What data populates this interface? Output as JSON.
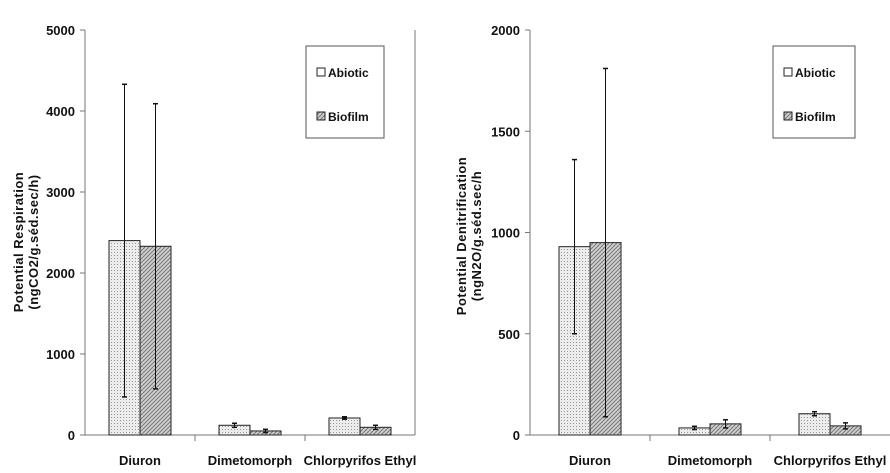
{
  "colors": {
    "abiotic_fill": "#e6e6e6",
    "biofilm_fill": "#cfcfcf",
    "axis": "#777777",
    "bar_stroke": "#222222"
  },
  "chart_data": [
    {
      "type": "bar",
      "ylabel": [
        "Potential Respiration",
        "(ngCO2/g.séd.sec/h)"
      ],
      "ylim": [
        0,
        5000
      ],
      "yticks": [
        0,
        1000,
        2000,
        3000,
        4000,
        5000
      ],
      "categories": [
        "Diuron",
        "Dimetomorph",
        "Chlorpyrifos Ethyl"
      ],
      "legend_position": "top-right",
      "series": [
        {
          "name": "Abiotic",
          "pattern": "dots",
          "values": [
            2400,
            120,
            210
          ],
          "error": [
            1930,
            25,
            15
          ]
        },
        {
          "name": "Biofilm",
          "pattern": "hatch",
          "values": [
            2330,
            50,
            95
          ],
          "error": [
            1760,
            20,
            25
          ]
        }
      ]
    },
    {
      "type": "bar",
      "ylabel": [
        "Potential Denitrification",
        "(ngN2O/g.séd.sec/h"
      ],
      "ylim": [
        0,
        2000
      ],
      "yticks": [
        0,
        500,
        1000,
        1500,
        2000
      ],
      "categories": [
        "Diuron",
        "Dimetomorph",
        "Chlorpyrifos Ethyl"
      ],
      "legend_position": "top-right",
      "series": [
        {
          "name": "Abiotic",
          "pattern": "dots",
          "values": [
            930,
            35,
            105
          ],
          "error": [
            430,
            8,
            10
          ]
        },
        {
          "name": "Biofilm",
          "pattern": "hatch",
          "values": [
            950,
            55,
            45
          ],
          "error": [
            860,
            20,
            15
          ]
        }
      ]
    }
  ]
}
